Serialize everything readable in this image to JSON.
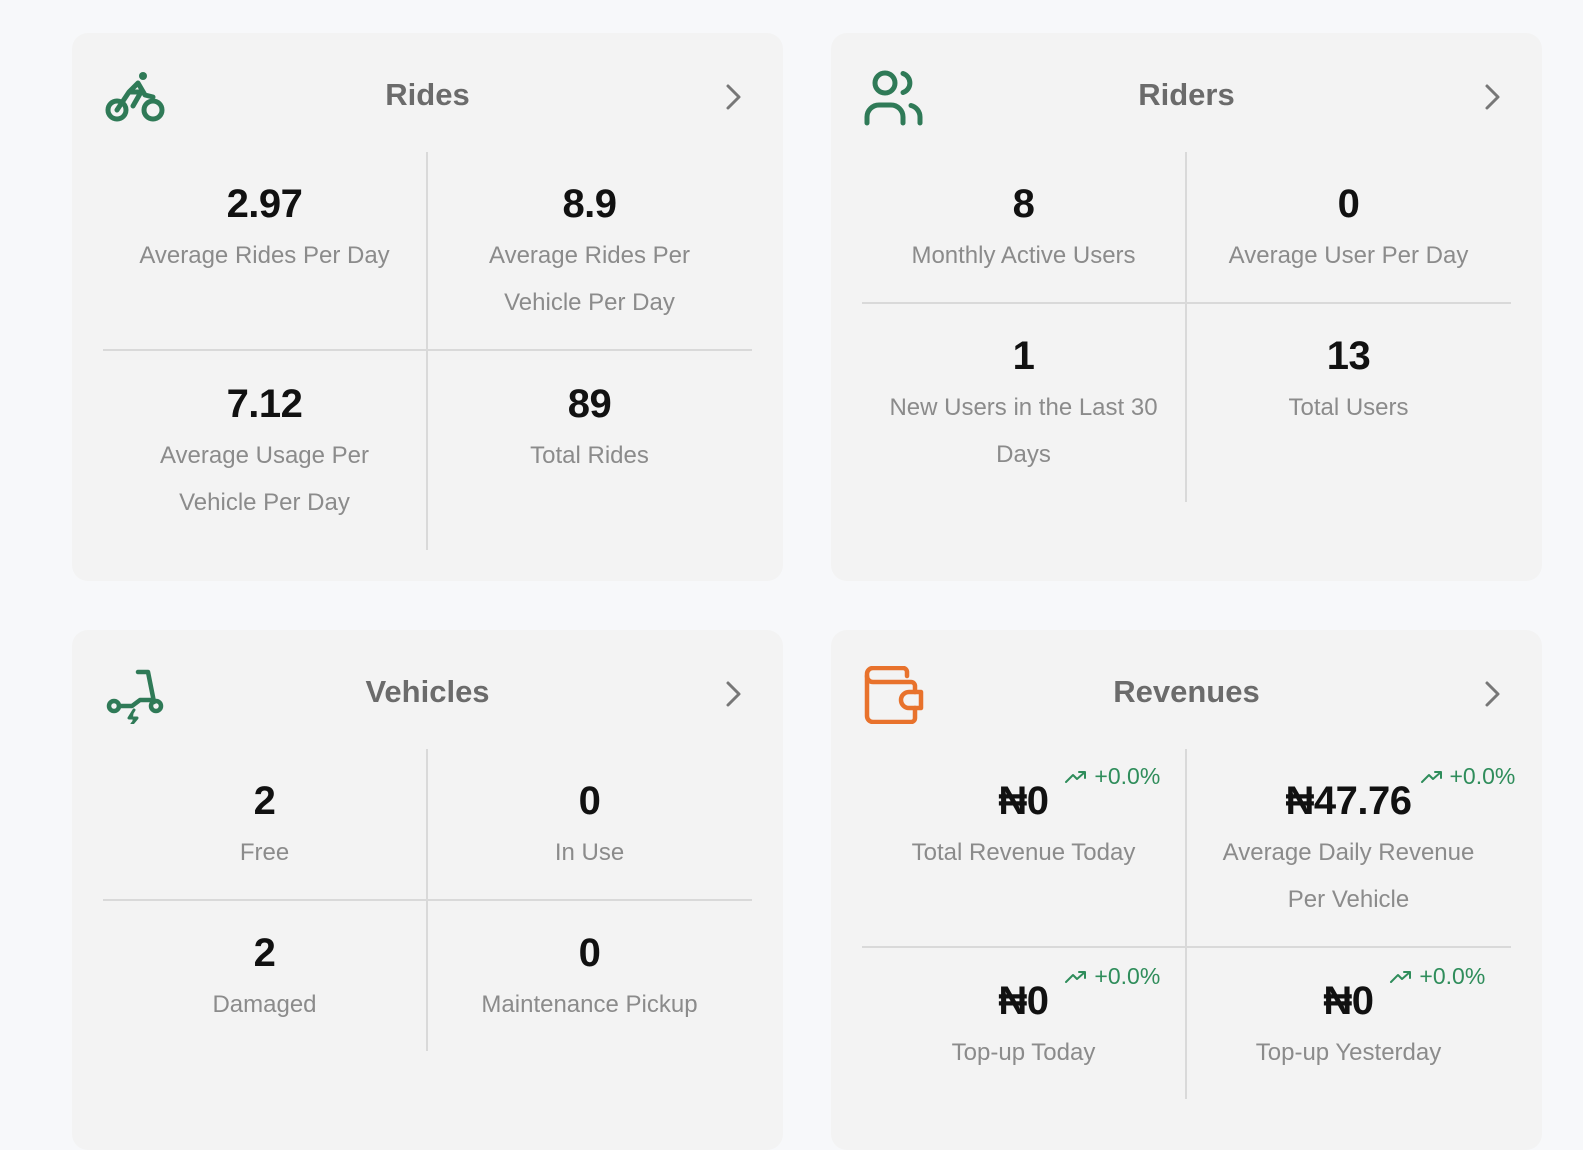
{
  "colors": {
    "green": "#2f7a57",
    "orange": "#e8722c",
    "trend_green": "#2f8d5b"
  },
  "rides": {
    "icon": "bicycle-rider-icon",
    "title": "Rides",
    "stats": [
      {
        "value": "2.97",
        "label": "Average Rides Per Day"
      },
      {
        "value": "8.9",
        "label": "Average Rides Per Vehicle Per Day"
      },
      {
        "value": "7.12",
        "label": "Average Usage Per Vehicle Per Day"
      },
      {
        "value": "89",
        "label": "Total Rides"
      }
    ]
  },
  "riders": {
    "icon": "users-icon",
    "title": "Riders",
    "stats": [
      {
        "value": "8",
        "label": "Monthly Active Users"
      },
      {
        "value": "0",
        "label": "Average User Per Day"
      },
      {
        "value": "1",
        "label": "New Users in the Last 30 Days"
      },
      {
        "value": "13",
        "label": "Total Users"
      }
    ]
  },
  "vehicles": {
    "icon": "electric-scooter-icon",
    "title": "Vehicles",
    "stats": [
      {
        "value": "2",
        "label": "Free"
      },
      {
        "value": "0",
        "label": "In Use"
      },
      {
        "value": "2",
        "label": "Damaged"
      },
      {
        "value": "0",
        "label": "Maintenance Pickup"
      }
    ]
  },
  "revenues": {
    "icon": "wallet-icon",
    "title": "Revenues",
    "stats": [
      {
        "value": "₦0",
        "label": "Total Revenue Today",
        "trend": "+0.0%"
      },
      {
        "value": "₦47.76",
        "label": "Average Daily Revenue Per Vehicle",
        "trend": "+0.0%"
      },
      {
        "value": "₦0",
        "label": "Top-up Today",
        "trend": "+0.0%"
      },
      {
        "value": "₦0",
        "label": "Top-up Yesterday",
        "trend": "+0.0%"
      }
    ]
  }
}
